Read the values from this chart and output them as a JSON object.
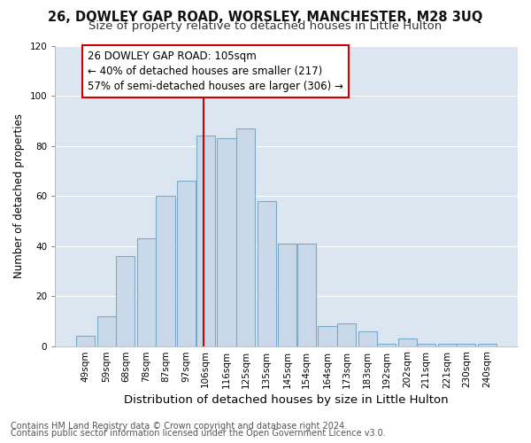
{
  "title": "26, DOWLEY GAP ROAD, WORSLEY, MANCHESTER, M28 3UQ",
  "subtitle": "Size of property relative to detached houses in Little Hulton",
  "xlabel": "Distribution of detached houses by size in Little Hulton",
  "ylabel": "Number of detached properties",
  "footnote1": "Contains HM Land Registry data © Crown copyright and database right 2024.",
  "footnote2": "Contains public sector information licensed under the Open Government Licence v3.0.",
  "annotation_line1": "26 DOWLEY GAP ROAD: 105sqm",
  "annotation_line2": "← 40% of detached houses are smaller (217)",
  "annotation_line3": "57% of semi-detached houses are larger (306) →",
  "property_size": 105,
  "bar_centers": [
    49,
    59,
    68,
    78,
    87,
    97,
    106,
    116,
    125,
    135,
    145,
    154,
    164,
    173,
    183,
    192,
    202,
    211,
    221,
    230,
    240
  ],
  "bar_heights": [
    4,
    12,
    36,
    43,
    60,
    66,
    84,
    83,
    87,
    58,
    41,
    41,
    8,
    9,
    6,
    1,
    3,
    1,
    1,
    1,
    1
  ],
  "bar_width": 9.2,
  "tick_labels": [
    "49sqm",
    "59sqm",
    "68sqm",
    "78sqm",
    "87sqm",
    "97sqm",
    "106sqm",
    "116sqm",
    "125sqm",
    "135sqm",
    "145sqm",
    "154sqm",
    "164sqm",
    "173sqm",
    "183sqm",
    "192sqm",
    "202sqm",
    "211sqm",
    "221sqm",
    "230sqm",
    "240sqm"
  ],
  "tick_positions": [
    49,
    59,
    68,
    78,
    87,
    97,
    106,
    116,
    125,
    135,
    145,
    154,
    164,
    173,
    183,
    192,
    202,
    211,
    221,
    230,
    240
  ],
  "bar_color": "#c9d9ea",
  "bar_edge_color": "#7aaac8",
  "bar_edge_width": 0.8,
  "vline_x": 105,
  "vline_color": "#cc0000",
  "ylim": [
    0,
    120
  ],
  "yticks": [
    0,
    20,
    40,
    60,
    80,
    100,
    120
  ],
  "fig_bg_color": "#ffffff",
  "plot_bg_color": "#dce6f0",
  "grid_color": "#ffffff",
  "title_fontsize": 10.5,
  "subtitle_fontsize": 9.5,
  "xlabel_fontsize": 9.5,
  "ylabel_fontsize": 8.5,
  "tick_fontsize": 7.5,
  "annotation_fontsize": 8.5,
  "footnote_fontsize": 7
}
